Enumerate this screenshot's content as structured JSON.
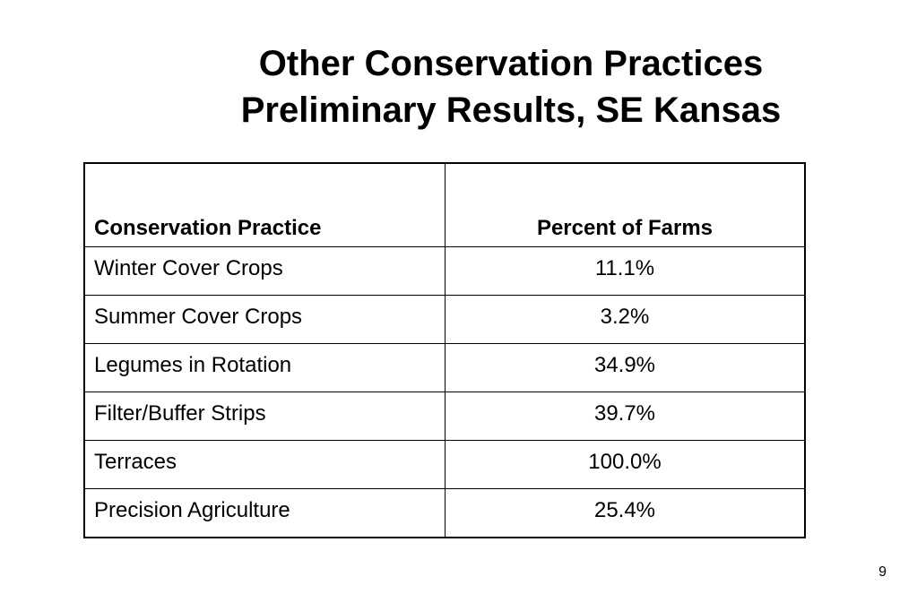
{
  "slide": {
    "title_line1": "Other Conservation Practices",
    "title_line2": "Preliminary Results, SE Kansas",
    "page_number": "9"
  },
  "table": {
    "headers": {
      "practice": "Conservation Practice",
      "percent": "Percent of Farms"
    },
    "rows": [
      {
        "practice": "Winter Cover Crops",
        "percent": "11.1%"
      },
      {
        "practice": "Summer Cover Crops",
        "percent": "3.2%"
      },
      {
        "practice": "Legumes in Rotation",
        "percent": "34.9%"
      },
      {
        "practice": "Filter/Buffer Strips",
        "percent": "39.7%"
      },
      {
        "practice": "Terraces",
        "percent": "100.0%"
      },
      {
        "practice": "Precision Agriculture",
        "percent": "25.4%"
      }
    ]
  }
}
